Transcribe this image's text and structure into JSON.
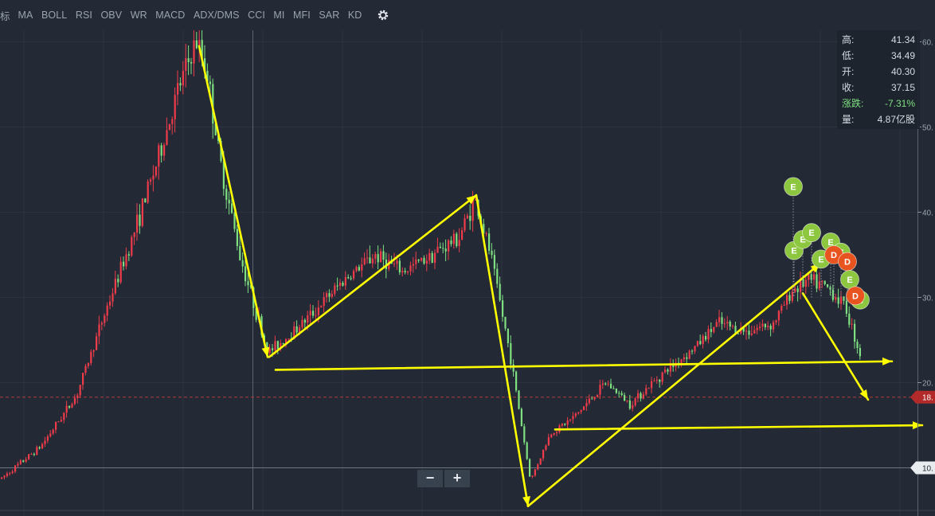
{
  "toolbar": {
    "left_label": "标",
    "indicators": [
      "MA",
      "BOLL",
      "RSI",
      "OBV",
      "WR",
      "MACD",
      "ADX/DMS",
      "CCI",
      "MI",
      "MFI",
      "SAR",
      "KD"
    ],
    "settings_icon": "gear-icon"
  },
  "info_panel": {
    "rows": [
      {
        "label": "高:",
        "value": "41.34"
      },
      {
        "label": "低:",
        "value": "34.49"
      },
      {
        "label": "开:",
        "value": "40.30"
      },
      {
        "label": "收:",
        "value": "37.15"
      },
      {
        "label": "涨跌:",
        "value": "-7.31%"
      },
      {
        "label": "量:",
        "value": "4.87亿股"
      }
    ],
    "up_color": "#7ee081"
  },
  "zoom": {
    "minus_label": "−",
    "plus_label": "+"
  },
  "chart_data": {
    "type": "candlestick",
    "y_axis": {
      "position": "right",
      "ylim": [
        8,
        62
      ],
      "ticks": [
        {
          "value": 60,
          "label": "60."
        },
        {
          "value": 50,
          "label": "50."
        },
        {
          "value": 40,
          "label": "40."
        },
        {
          "value": 30,
          "label": "30."
        },
        {
          "value": 20,
          "label": "20."
        }
      ]
    },
    "current_price": {
      "value": 18.3,
      "label": "18."
    },
    "reference_price": {
      "value": 10.0,
      "label": "10."
    },
    "colors": {
      "up": "#ef3b4a",
      "down": "#7ee081",
      "annotation": "#ffff00",
      "markerE": "#8dc63f",
      "markerD": "#e8541f"
    },
    "price_path": [
      [
        0,
        8.7
      ],
      [
        50,
        12.5
      ],
      [
        95,
        18.5
      ],
      [
        130,
        28
      ],
      [
        165,
        37
      ],
      [
        200,
        47
      ],
      [
        225,
        55
      ],
      [
        245,
        60
      ],
      [
        258,
        57
      ],
      [
        275,
        46
      ],
      [
        300,
        35
      ],
      [
        335,
        23.5
      ],
      [
        355,
        25
      ],
      [
        390,
        28
      ],
      [
        430,
        32
      ],
      [
        470,
        35
      ],
      [
        505,
        33
      ],
      [
        540,
        35
      ],
      [
        575,
        37
      ],
      [
        595,
        41.5
      ],
      [
        615,
        35
      ],
      [
        640,
        23
      ],
      [
        665,
        8.5
      ],
      [
        690,
        14
      ],
      [
        720,
        16
      ],
      [
        760,
        20
      ],
      [
        790,
        17.5
      ],
      [
        830,
        21
      ],
      [
        870,
        24
      ],
      [
        900,
        27
      ],
      [
        935,
        26
      ],
      [
        970,
        27
      ],
      [
        995,
        31
      ],
      [
        1015,
        32
      ],
      [
        1040,
        31
      ],
      [
        1060,
        29
      ],
      [
        1080,
        23
      ],
      [
        1085,
        18.3
      ]
    ],
    "annotation_arrows": [
      {
        "from": [
          250,
          59.5
        ],
        "to": [
          336,
          23
        ]
      },
      {
        "from": [
          338,
          23
        ],
        "to": [
          598,
          42
        ]
      },
      {
        "from": [
          598,
          42
        ],
        "to": [
          663,
          5.5
        ]
      },
      {
        "from": [
          663,
          5.5
        ],
        "to": [
          1030,
          34
        ]
      },
      {
        "from": [
          1008,
          30.5
        ],
        "to": [
          1090,
          18
        ]
      },
      {
        "from": [
          346,
          21.5
        ],
        "to": [
          1120,
          22.5
        ]
      },
      {
        "from": [
          697,
          14.5
        ],
        "to": [
          1158,
          15
        ]
      }
    ],
    "markers": [
      {
        "label": "E",
        "type": "E",
        "x": 996,
        "price": 43.0
      },
      {
        "label": "E",
        "type": "E",
        "x": 997,
        "price": 35.5
      },
      {
        "label": "E",
        "type": "E",
        "x": 1008,
        "price": 36.8
      },
      {
        "label": "E",
        "type": "E",
        "x": 1019,
        "price": 37.6
      },
      {
        "label": "E",
        "type": "E",
        "x": 1043,
        "price": 36.5
      },
      {
        "label": "E",
        "type": "E",
        "x": 1031,
        "price": 34.5
      },
      {
        "label": "E",
        "type": "E",
        "x": 1056,
        "price": 35.3
      },
      {
        "label": "D",
        "type": "D",
        "x": 1047,
        "price": 35.0
      },
      {
        "label": "D",
        "type": "D",
        "x": 1064,
        "price": 34.2
      },
      {
        "label": "E",
        "type": "E",
        "x": 1067,
        "price": 32.1
      },
      {
        "label": "E",
        "type": "E",
        "x": 1080,
        "price": 29.7
      },
      {
        "label": "D",
        "type": "D",
        "x": 1074,
        "price": 30.2
      }
    ]
  }
}
